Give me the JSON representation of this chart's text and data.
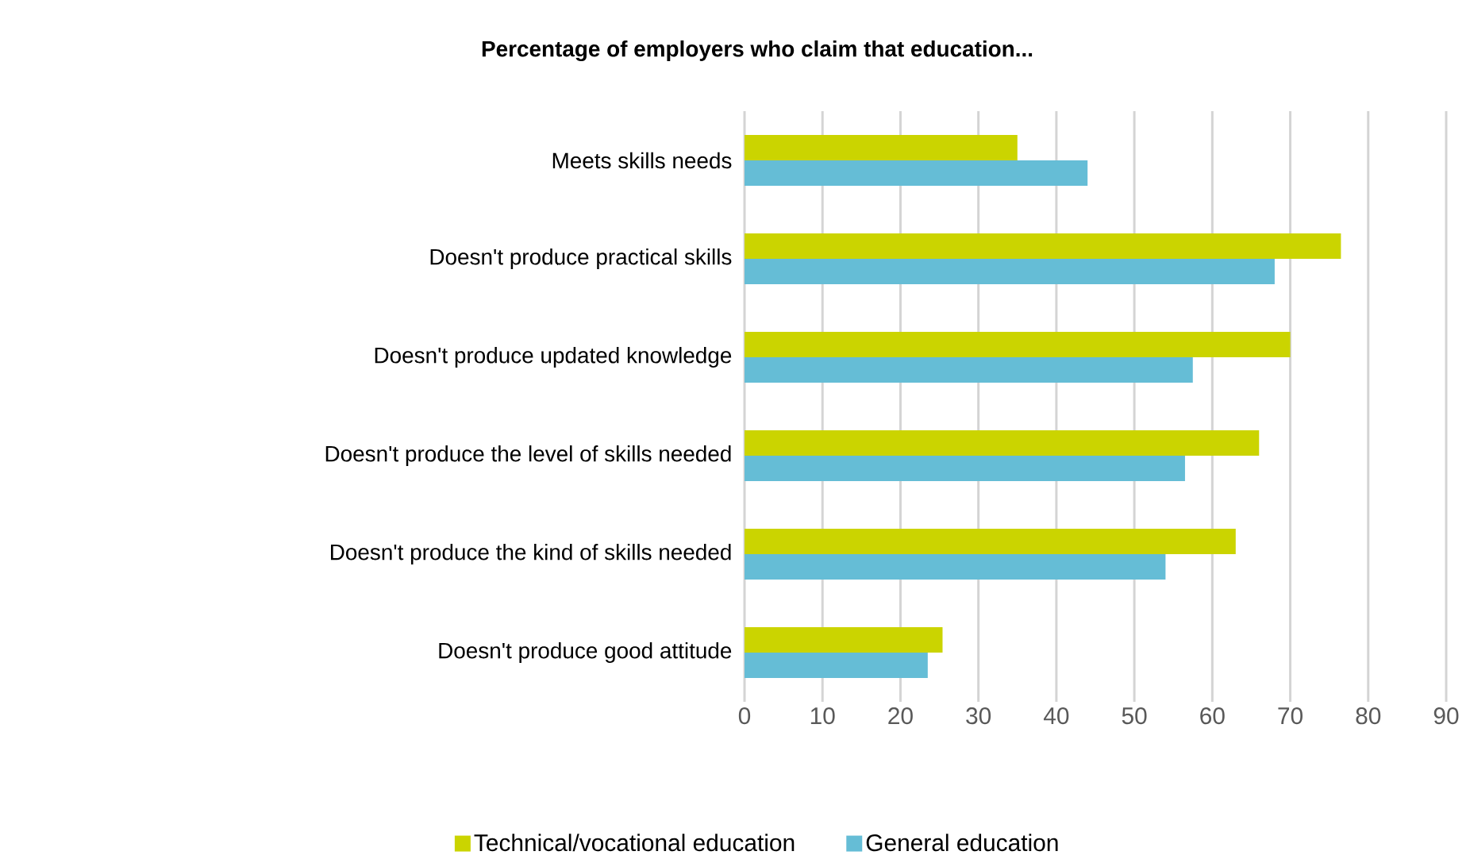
{
  "chart_data": {
    "type": "bar",
    "orientation": "horizontal",
    "title": "Percentage of employers who claim that education...",
    "categories": [
      "Meets skills needs",
      "Doesn't produce practical skills",
      "Doesn't produce updated knowledge",
      "Doesn't produce the level of skills needed",
      "Doesn't produce the kind of skills needed",
      "Doesn't produce good attitude"
    ],
    "series": [
      {
        "name": "Technical/vocational education",
        "color": "#cbd400",
        "values": [
          35,
          76.5,
          70,
          66,
          63,
          25.4
        ]
      },
      {
        "name": "General education",
        "color": "#65bdd6",
        "values": [
          44,
          68,
          57.5,
          56.5,
          54,
          23.5
        ]
      }
    ],
    "xlim": [
      0,
      90
    ],
    "xticks": [
      0,
      10,
      20,
      30,
      40,
      50,
      60,
      70,
      80,
      90
    ],
    "grid": "x",
    "legend": "bottom"
  }
}
